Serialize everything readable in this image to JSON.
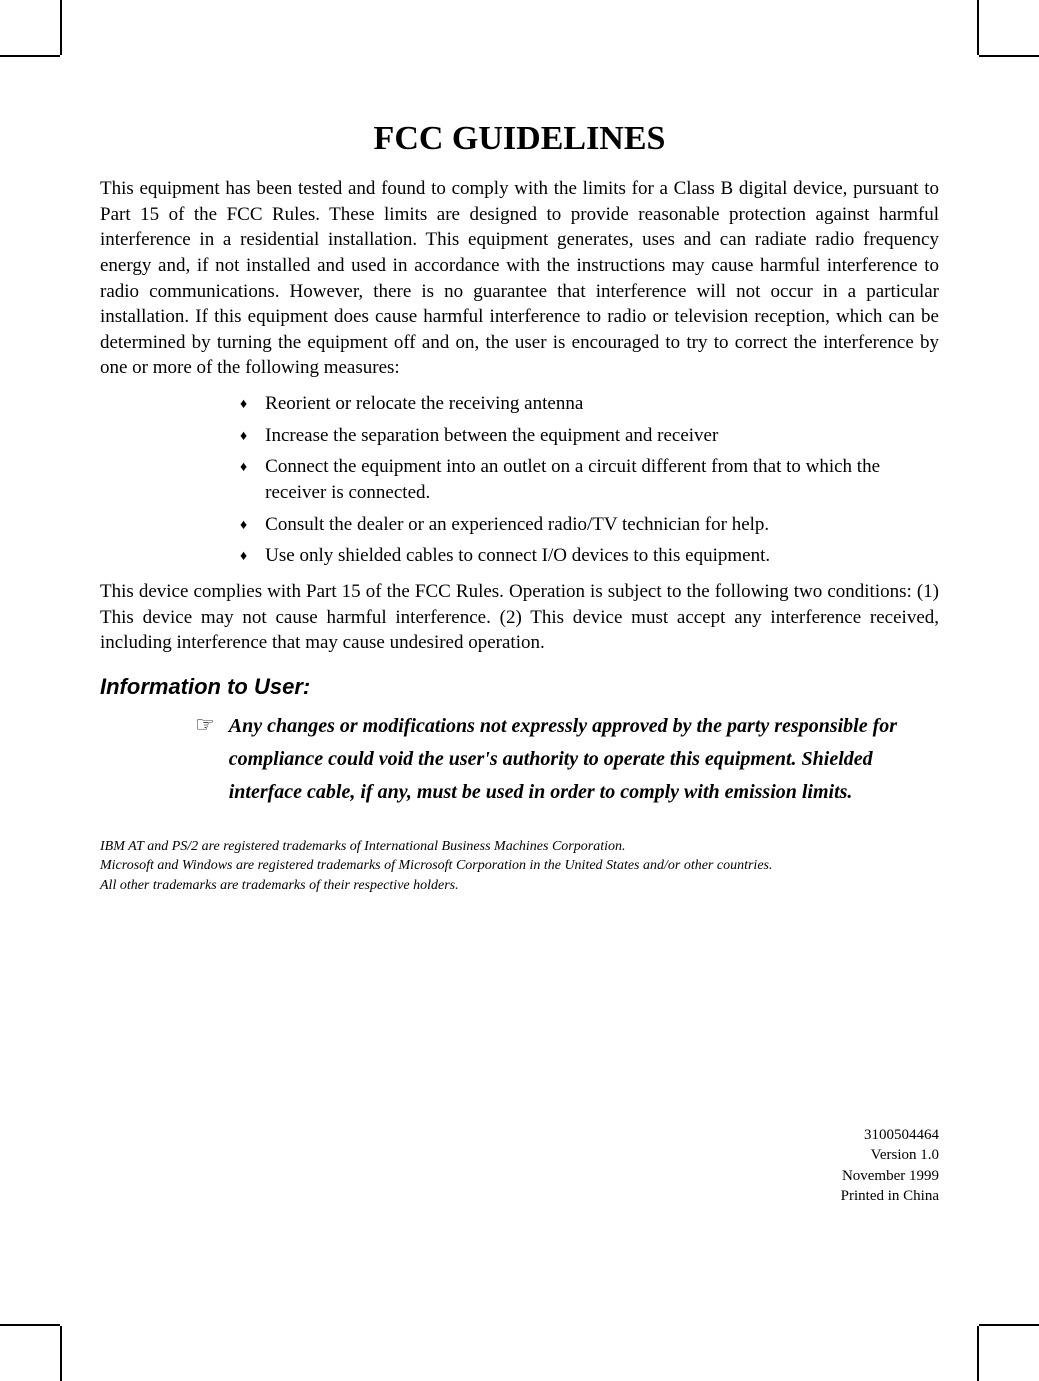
{
  "title": "FCC GUIDELINES",
  "intro": "This equipment has been tested and found to comply with the limits for a Class B digital device, pursuant to Part 15 of the FCC Rules. These limits are designed to provide reasonable protection against harmful interference in a residential installation. This equipment generates, uses and can radiate radio frequency energy and, if not installed and used in accordance with the instructions may cause harmful interference to radio communications. However, there is no guarantee that interference will not occur in a particular installation. If this equipment does cause harmful interference to radio or television reception, which can be determined by turning the equipment off and on, the user is encouraged to try to correct the interference by one or more of the following measures:",
  "bullets": {
    "b0": "Reorient or relocate the receiving antenna",
    "b1": "Increase the separation between the equipment and receiver",
    "b2": "Connect the equipment into an outlet on a circuit different from that to which the receiver is connected.",
    "b3": "Consult the dealer or an experienced radio/TV technician for help.",
    "b4": "Use only shielded cables to connect I/O devices to this equipment."
  },
  "compliance": "This device complies with Part 15 of the FCC Rules. Operation is subject to the following two conditions: (1) This device may not cause harmful interference. (2) This device must accept any interference received, including interference that may cause undesired operation.",
  "section_header": "Information to User:",
  "info_text": "Any changes or modifications not expressly approved by the party responsible for compliance could void the user's authority to operate this equipment. Shielded interface cable, if any, must be used in order to comply with emission limits.",
  "trademarks": {
    "t0": "IBM AT and PS/2 are registered trademarks of International Business Machines Corporation.",
    "t1": "Microsoft and Windows are registered trademarks of Microsoft Corporation in the United States and/or other countries.",
    "t2": "All other trademarks are trademarks of their respective holders."
  },
  "footer": {
    "f0": "3100504464",
    "f1": "Version 1.0",
    "f2": "November 1999",
    "f3": "Printed in China"
  },
  "marker": "♦",
  "pointer": "☞"
}
